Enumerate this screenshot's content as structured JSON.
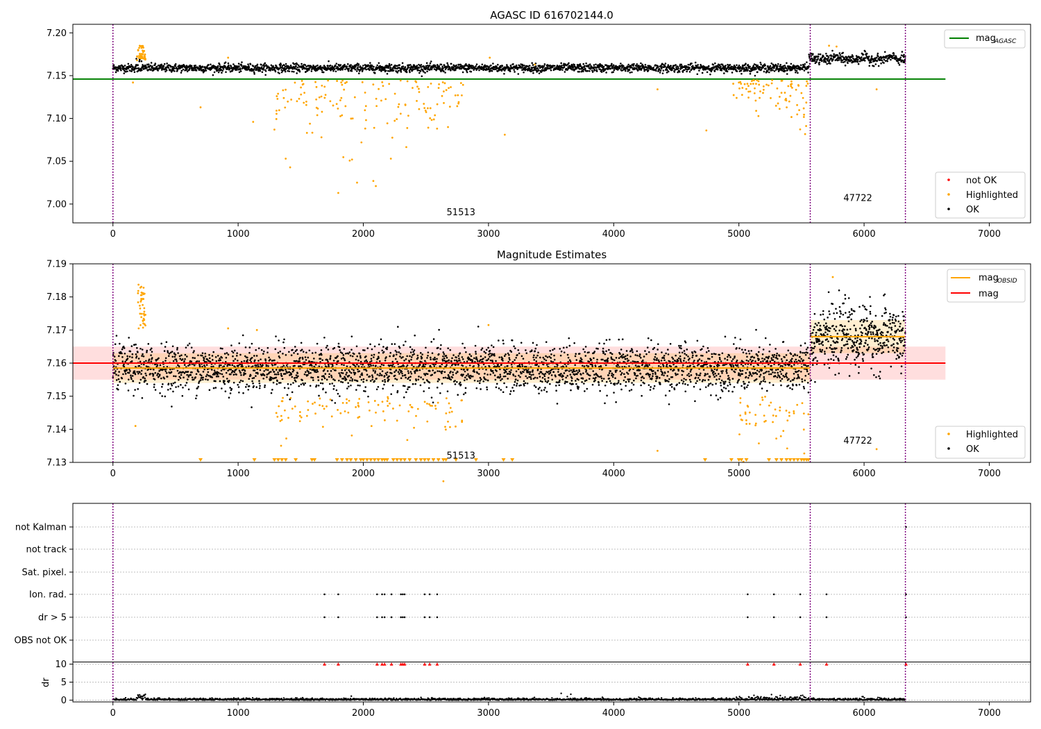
{
  "chart_data": [
    {
      "type": "scatter",
      "title": "AGASC ID 616702144.0",
      "xlim": [
        -320,
        7330
      ],
      "ylim": [
        6.978,
        7.21
      ],
      "xticks": [
        0,
        1000,
        2000,
        3000,
        4000,
        5000,
        6000,
        7000
      ],
      "yticks": [
        7.0,
        7.05,
        7.1,
        7.15,
        7.2
      ],
      "ytick_labels": [
        "7.00",
        "7.05",
        "7.10",
        "7.15",
        "7.20"
      ],
      "obs_boundaries": [
        0,
        5570,
        6330
      ],
      "obs_labels": [
        {
          "text": "51513",
          "x": 2780,
          "y": 6.99
        },
        {
          "text": "47722",
          "x": 5950,
          "y": 7.007
        }
      ],
      "reference_lines": [
        {
          "name": "mag_AGASC",
          "y": 7.146,
          "x": [
            -320,
            6650
          ],
          "color": "#008000"
        }
      ],
      "series": [
        {
          "name": "not OK",
          "color": "#ff0000",
          "count": 0
        },
        {
          "name": "Highlighted",
          "color": "#ffa500",
          "note": "outliers scattered 7.01–7.185, concentrated 1300–2800 and 5000–5560"
        },
        {
          "name": "OK",
          "color": "#000000",
          "segments": [
            {
              "x": [
                0,
                5560
              ],
              "mean": 7.159,
              "spread": 0.004
            },
            {
              "x": [
                5560,
                6330
              ],
              "mean": 7.169,
              "spread": 0.005
            }
          ]
        }
      ],
      "legend_position": "upper-right and lower-right",
      "legend_upper": [
        {
          "label": "mag",
          "sub": "AGASC",
          "color": "#008000"
        }
      ],
      "legend_lower": [
        {
          "label": "not OK",
          "color": "#ff0000"
        },
        {
          "label": "Highlighted",
          "color": "#ffa500"
        },
        {
          "label": "OK",
          "color": "#000000"
        }
      ]
    },
    {
      "type": "scatter",
      "title": "Magnitude Estimates",
      "xlim": [
        -320,
        7330
      ],
      "ylim": [
        7.13,
        7.19
      ],
      "xticks": [
        0,
        1000,
        2000,
        3000,
        4000,
        5000,
        6000,
        7000
      ],
      "yticks": [
        7.13,
        7.14,
        7.15,
        7.16,
        7.17,
        7.18,
        7.19
      ],
      "ytick_labels": [
        "7.13",
        "7.14",
        "7.15",
        "7.16",
        "7.17",
        "7.18",
        "7.19"
      ],
      "obs_boundaries": [
        0,
        5570,
        6330
      ],
      "obs_labels": [
        {
          "text": "51513",
          "x": 2780,
          "y": 7.132
        },
        {
          "text": "47722",
          "x": 5950,
          "y": 7.1365
        }
      ],
      "reference_lines": [
        {
          "name": "mag",
          "y": 7.16,
          "x": [
            -320,
            6650
          ],
          "color": "#ff0000",
          "band": [
            7.155,
            7.165
          ]
        },
        {
          "name": "mag_OBSID 51513",
          "y": 7.1585,
          "x": [
            0,
            5570
          ],
          "color": "#ffa500",
          "band": [
            7.154,
            7.163
          ]
        },
        {
          "name": "mag_OBSID 47722",
          "y": 7.168,
          "x": [
            5570,
            6330
          ],
          "color": "#ffa500",
          "band": [
            7.163,
            7.173
          ]
        }
      ],
      "series": [
        {
          "name": "Highlighted",
          "color": "#ffa500",
          "note": "outliers plus below-axis markers (triangles) at y-min"
        },
        {
          "name": "OK",
          "color": "#000000"
        }
      ],
      "legend_position": "upper-right and lower-right",
      "legend_upper": [
        {
          "label": "mag",
          "sub": "OBSID",
          "color": "#ffa500"
        },
        {
          "label": "mag",
          "sub": "",
          "color": "#ff0000"
        }
      ],
      "legend_lower": [
        {
          "label": "Highlighted",
          "color": "#ffa500"
        },
        {
          "label": "OK",
          "color": "#000000"
        }
      ]
    },
    {
      "type": "scatter",
      "title": "",
      "categories": [
        "not Kalman",
        "not track",
        "Sat. pixel.",
        "Ion. rad.",
        "dr > 5",
        "OBS not OK"
      ],
      "flag_events": {
        "Ion. rad.": [
          1690,
          1800,
          2110,
          2150,
          2170,
          2225,
          2300,
          2315,
          2330,
          2490,
          2530,
          2590,
          5070,
          5280,
          5490,
          5700,
          6335
        ],
        "dr > 5": [
          1690,
          1800,
          2110,
          2150,
          2170,
          2225,
          2300,
          2315,
          2330,
          2490,
          2530,
          2590,
          5070,
          5280,
          5490,
          5700,
          6335
        ],
        "not Kalman": [
          6335
        ]
      },
      "obs_boundaries": [
        0,
        5570,
        6330
      ]
    },
    {
      "type": "scatter",
      "title": "",
      "ylabel": "dr",
      "xlim": [
        -320,
        7330
      ],
      "ylim": [
        -0.5,
        10.5
      ],
      "xticks": [
        0,
        1000,
        2000,
        3000,
        4000,
        5000,
        6000,
        7000
      ],
      "yticks": [
        0,
        5,
        10
      ],
      "clipped_markers_at_10": [
        1690,
        1800,
        2110,
        2150,
        2170,
        2225,
        2300,
        2315,
        2330,
        2490,
        2530,
        2590,
        5070,
        5280,
        5490,
        5700,
        6335
      ],
      "obs_boundaries": [
        0,
        5570,
        6330
      ]
    }
  ]
}
